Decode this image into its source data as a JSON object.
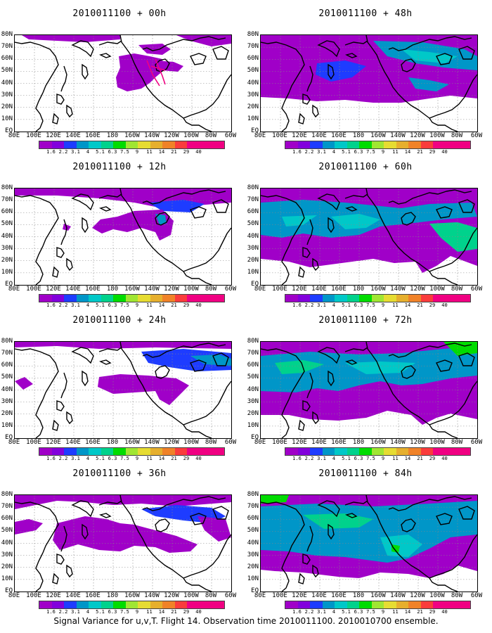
{
  "colorbar": {
    "labels": [
      "1.6",
      "2.2",
      "3.1",
      "4",
      "5.1",
      "6.3",
      "7.5",
      "9",
      "11",
      "14",
      "21",
      "29",
      "40"
    ],
    "colors": [
      "#a000c8",
      "#8200dc",
      "#1e3cff",
      "#0096c8",
      "#00c8c8",
      "#00d28c",
      "#00dc00",
      "#a0e632",
      "#e6dc32",
      "#e6af2d",
      "#f08228",
      "#fa3c3c",
      "#f00082"
    ]
  },
  "lat_labels": [
    "80N",
    "70N",
    "60N",
    "50N",
    "40N",
    "30N",
    "20N",
    "10N",
    "EQ"
  ],
  "lon_labels": [
    "80E",
    "100E",
    "120E",
    "140E",
    "160E",
    "180",
    "160W",
    "140W",
    "120W",
    "100W",
    "80W",
    "60W"
  ],
  "caption": "Signal Variance for u,v,T. Flight 14. Observation time 2010011100. 2010010700 ensemble.",
  "chart_data": [
    {
      "type": "heatmap",
      "title": "2010011100 + 00h",
      "forecast_hour": 0
    },
    {
      "type": "heatmap",
      "title": "2010011100 + 12h",
      "forecast_hour": 12
    },
    {
      "type": "heatmap",
      "title": "2010011100 + 24h",
      "forecast_hour": 24
    },
    {
      "type": "heatmap",
      "title": "2010011100 + 36h",
      "forecast_hour": 36
    },
    {
      "type": "heatmap",
      "title": "2010011100 + 48h",
      "forecast_hour": 48
    },
    {
      "type": "heatmap",
      "title": "2010011100 + 60h",
      "forecast_hour": 60
    },
    {
      "type": "heatmap",
      "title": "2010011100 + 72h",
      "forecast_hour": 72
    },
    {
      "type": "heatmap",
      "title": "2010011100 + 84h",
      "forecast_hour": 84
    }
  ]
}
